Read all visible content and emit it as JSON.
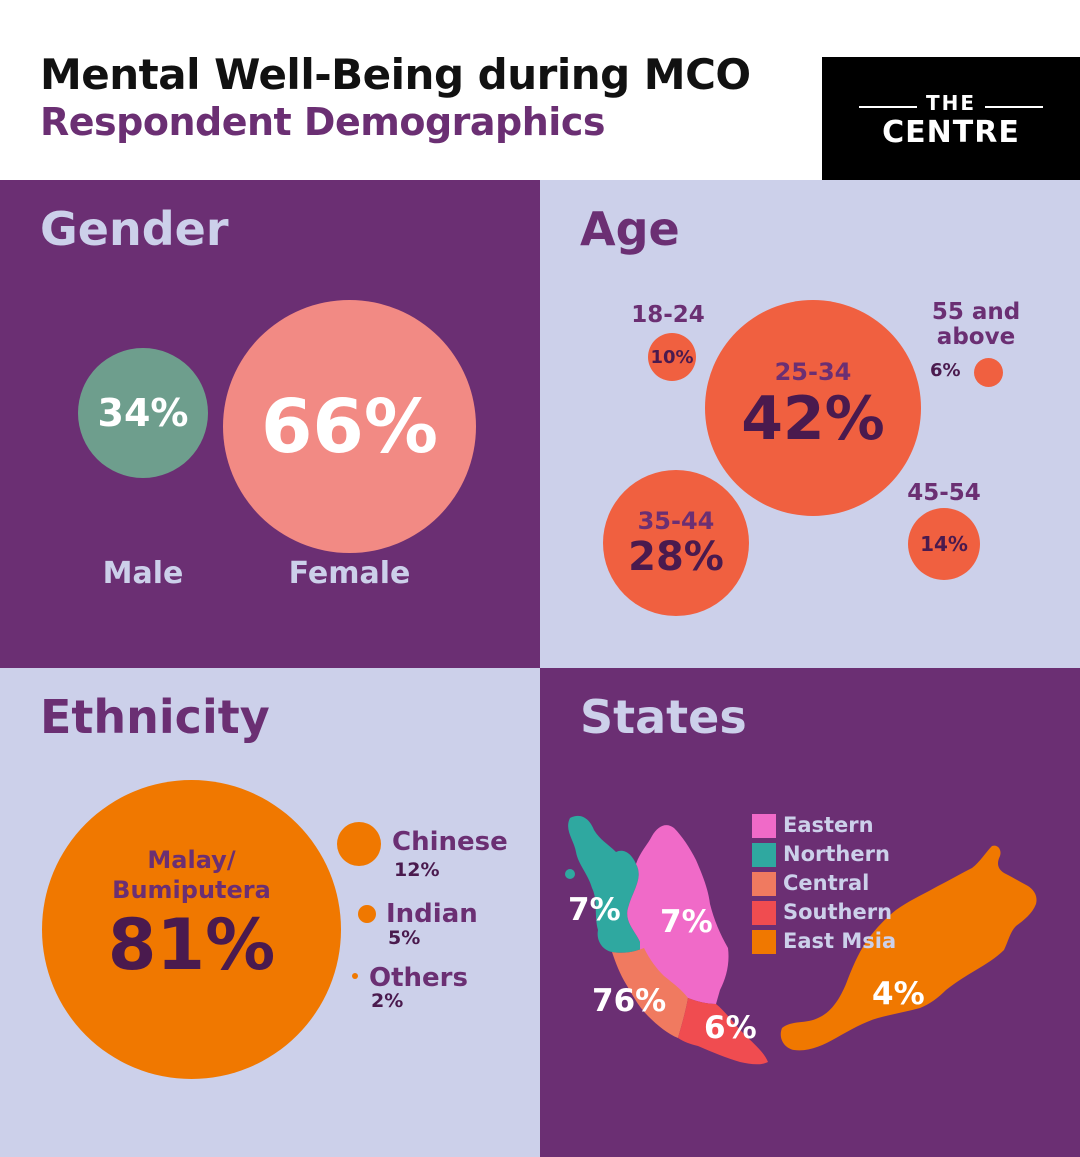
{
  "header": {
    "title": "Mental Well-Being during MCO",
    "subtitle": "Respondent Demographics",
    "logo_top": "THE",
    "logo_bottom": "CENTRE"
  },
  "colors": {
    "purple": "#6b2f73",
    "lavender": "#ccd0ea",
    "male": "#6e9e8d",
    "female": "#f28a84",
    "age": "#f06040",
    "ethnicity": "#f07800",
    "eastern": "#f06ac8",
    "northern": "#2fa8a0",
    "central": "#f07a60",
    "southern": "#f04c50",
    "east_msia": "#f07800"
  },
  "gender": {
    "title": "Gender",
    "male": {
      "label": "Male",
      "pct": "34%",
      "value": 34
    },
    "female": {
      "label": "Female",
      "pct": "66%",
      "value": 66
    }
  },
  "age": {
    "title": "Age",
    "groups": [
      {
        "label": "18-24",
        "pct": "10%",
        "value": 10
      },
      {
        "label": "25-34",
        "pct": "42%",
        "value": 42
      },
      {
        "label": "35-44",
        "pct": "28%",
        "value": 28
      },
      {
        "label": "45-54",
        "pct": "14%",
        "value": 14
      },
      {
        "label_line1": "55 and",
        "label_line2": "above",
        "pct": "6%",
        "value": 6
      }
    ]
  },
  "ethnicity": {
    "title": "Ethnicity",
    "groups": [
      {
        "label_line1": "Malay/",
        "label_line2": "Bumiputera",
        "pct": "81%",
        "value": 81
      },
      {
        "label": "Chinese",
        "pct": "12%",
        "value": 12
      },
      {
        "label": "Indian",
        "pct": "5%",
        "value": 5
      },
      {
        "label": "Others",
        "pct": "2%",
        "value": 2
      }
    ]
  },
  "states": {
    "title": "States",
    "legend": [
      {
        "label": "Eastern",
        "color": "#f06ac8"
      },
      {
        "label": "Northern",
        "color": "#2fa8a0"
      },
      {
        "label": "Central",
        "color": "#f07a60"
      },
      {
        "label": "Southern",
        "color": "#f04c50"
      },
      {
        "label": "East Msia",
        "color": "#f07800"
      }
    ],
    "regions": {
      "northern": {
        "pct": "7%",
        "value": 7
      },
      "eastern": {
        "pct": "7%",
        "value": 7
      },
      "central": {
        "pct": "76%",
        "value": 76
      },
      "southern": {
        "pct": "6%",
        "value": 6
      },
      "east_msia": {
        "pct": "4%",
        "value": 4
      }
    }
  }
}
